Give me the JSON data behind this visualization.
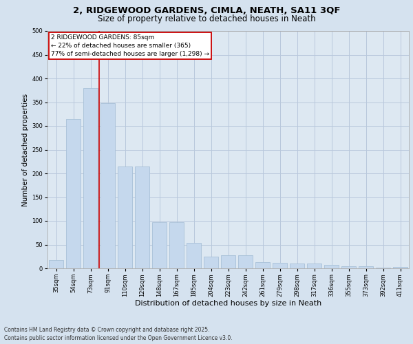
{
  "title_line1": "2, RIDGEWOOD GARDENS, CIMLA, NEATH, SA11 3QF",
  "title_line2": "Size of property relative to detached houses in Neath",
  "xlabel": "Distribution of detached houses by size in Neath",
  "ylabel": "Number of detached properties",
  "categories": [
    "35sqm",
    "54sqm",
    "73sqm",
    "91sqm",
    "110sqm",
    "129sqm",
    "148sqm",
    "167sqm",
    "185sqm",
    "204sqm",
    "223sqm",
    "242sqm",
    "261sqm",
    "279sqm",
    "298sqm",
    "317sqm",
    "336sqm",
    "355sqm",
    "373sqm",
    "392sqm",
    "411sqm"
  ],
  "values": [
    17,
    315,
    380,
    348,
    215,
    215,
    97,
    97,
    53,
    25,
    28,
    28,
    13,
    12,
    10,
    10,
    7,
    5,
    4,
    1,
    3
  ],
  "bar_color": "#c5d8ed",
  "bar_edge_color": "#a8c0d8",
  "grid_color": "#b8c8dc",
  "bg_color": "#d5e2ef",
  "plot_bg_color": "#dde8f2",
  "vline_x": 2.5,
  "vline_color": "#cc0000",
  "annotation_text": "2 RIDGEWOOD GARDENS: 85sqm\n← 22% of detached houses are smaller (365)\n77% of semi-detached houses are larger (1,298) →",
  "annotation_box_color": "#ffffff",
  "annotation_box_edge": "#cc0000",
  "footer_line1": "Contains HM Land Registry data © Crown copyright and database right 2025.",
  "footer_line2": "Contains public sector information licensed under the Open Government Licence v3.0.",
  "ylim": [
    0,
    500
  ],
  "yticks": [
    0,
    50,
    100,
    150,
    200,
    250,
    300,
    350,
    400,
    450,
    500
  ],
  "title_fontsize": 9.5,
  "subtitle_fontsize": 8.5,
  "ylabel_fontsize": 7.5,
  "xlabel_fontsize": 8,
  "tick_fontsize": 6,
  "ann_fontsize": 6.5,
  "footer_fontsize": 5.5
}
